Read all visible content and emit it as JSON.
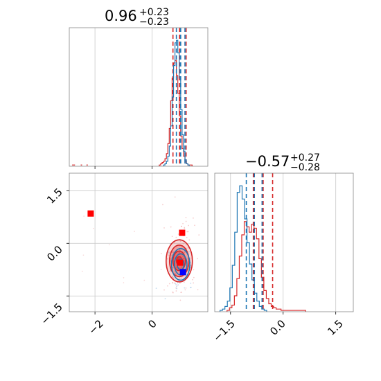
{
  "chart_data": [
    {
      "type": "histogram",
      "panel": "top-left marginal",
      "title": {
        "value": "0.96",
        "plus": "+0.23",
        "minus": "−0.23"
      },
      "xlim": [
        -2.9,
        1.95
      ],
      "grid": true,
      "series": [
        {
          "name": "",
          "color": "#d62728",
          "bins": {
            "start": 0.25,
            "width": 0.05,
            "counts": [
              1,
              2,
              3,
              4,
              6,
              10,
              18,
              30,
              52,
              70,
              82,
              84,
              72,
              58,
              40,
              24,
              14,
              8,
              4,
              2,
              1,
              1,
              1
            ]
          },
          "outliers": [
            -2.8,
            -2.75,
            -2.5,
            -2.3
          ],
          "quantiles": [
            0.73,
            0.96,
            1.19
          ]
        },
        {
          "name": "",
          "color": "#1f77b4",
          "bins": {
            "start": 0.4,
            "width": 0.05,
            "counts": [
              1,
              2,
              4,
              8,
              16,
              32,
              55,
              80,
              98,
              100,
              90,
              70,
              45,
              25,
              12,
              5,
              2,
              1
            ]
          },
          "quantiles": [
            0.85,
            1.0,
            1.15
          ]
        }
      ]
    },
    {
      "type": "scatter",
      "panel": "bottom-left joint",
      "xlim": [
        -2.9,
        1.95
      ],
      "ylim": [
        -1.95,
        2.0
      ],
      "x_ticks": [
        "−2",
        "0"
      ],
      "y_ticks": [
        "1.5",
        "0.0",
        "−1.5"
      ],
      "grid": true,
      "markers": [
        {
          "name": "",
          "color": "#ff0000",
          "x": -2.15,
          "y": 0.85,
          "shape": "square"
        },
        {
          "name": "",
          "color": "#ff0000",
          "x": 1.05,
          "y": 0.3,
          "shape": "square"
        },
        {
          "name": "",
          "color": "#ff0000",
          "x": 0.98,
          "y": -0.55,
          "shape": "square"
        },
        {
          "name": "",
          "color": "#0000ff",
          "x": 1.08,
          "y": -0.82,
          "shape": "square"
        }
      ],
      "contours": [
        {
          "color": "#d62728",
          "cx": 0.95,
          "cy": -0.5,
          "radii": [
            [
              0.1,
              0.12
            ],
            [
              0.22,
              0.28
            ],
            [
              0.34,
              0.45
            ],
            [
              0.46,
              0.6
            ]
          ]
        },
        {
          "color": "#1f77b4",
          "cx": 1.0,
          "cy": -0.6,
          "radii": [
            [
              0.12,
              0.15
            ],
            [
              0.22,
              0.3
            ],
            [
              0.32,
              0.45
            ]
          ]
        }
      ]
    },
    {
      "type": "histogram",
      "panel": "bottom-right marginal",
      "title": {
        "value": "−0.57",
        "plus": "+0.27",
        "minus": "−0.28"
      },
      "xlim": [
        -1.95,
        2.0
      ],
      "x_ticks": [
        "−1.5",
        "0.0",
        "1.5"
      ],
      "grid": true,
      "series": [
        {
          "name": "",
          "color": "#d62728",
          "bins": {
            "start": -1.6,
            "width": 0.07,
            "counts": [
              1,
              3,
              5,
              12,
              25,
              42,
              58,
              68,
              64,
              60,
              66,
              63,
              55,
              40,
              26,
              16,
              10,
              6,
              4,
              3,
              2,
              2,
              1,
              1,
              1,
              1,
              1,
              1,
              1,
              1,
              1,
              1
            ]
          },
          "quantiles": [
            -0.85,
            -0.57,
            -0.3
          ]
        },
        {
          "name": "",
          "color": "#1f77b4",
          "bins": {
            "start": -1.8,
            "width": 0.07,
            "counts": [
              1,
              2,
              4,
              8,
              18,
              35,
              60,
              90,
              95,
              85,
              70,
              52,
              36,
              24,
              14,
              8,
              4,
              2,
              1
            ]
          },
          "quantiles": [
            -1.05,
            -0.82,
            -0.6
          ]
        }
      ]
    }
  ]
}
